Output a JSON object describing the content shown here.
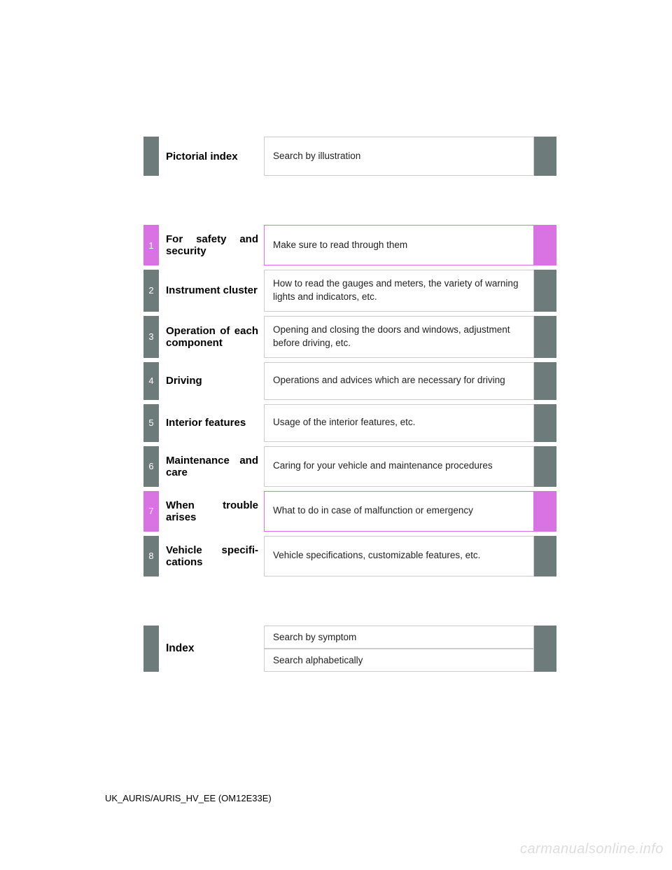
{
  "colors": {
    "tab_gray": "#6e7b7b",
    "tab_pink": "#d973e4",
    "border_gray": "#cccccc",
    "text": "#222222",
    "watermark": "#dddddd"
  },
  "pictorial": {
    "title": "Pictorial index",
    "desc": "Search by illustration"
  },
  "chapters": [
    {
      "num": "1",
      "title": "For safety and security",
      "desc": "Make sure to read through them",
      "highlight": true
    },
    {
      "num": "2",
      "title": "Instrument clus­ter",
      "desc": "How to read the gauges and meters, the variety of warning lights and indicators, etc.",
      "highlight": false
    },
    {
      "num": "3",
      "title": "Operation of each component",
      "desc": "Opening and closing the doors and windows, adjustment before driving, etc.",
      "highlight": false
    },
    {
      "num": "4",
      "title": "Driving",
      "desc": "Operations and advices which are necessary for driving",
      "highlight": false
    },
    {
      "num": "5",
      "title": "Interior features",
      "desc": "Usage of the interior features, etc.",
      "highlight": false
    },
    {
      "num": "6",
      "title": "Maintenance and care",
      "desc": "Caring for your vehicle and maintenance procedures",
      "highlight": false
    },
    {
      "num": "7",
      "title": "When trouble arises",
      "desc": "What to do in case of malfunction or emergency",
      "highlight": true
    },
    {
      "num": "8",
      "title": "Vehicle specifi­cations",
      "desc": "Vehicle specifications, customizable features, etc.",
      "highlight": false
    }
  ],
  "index": {
    "title": "Index",
    "items": [
      "Search by symptom",
      "Search alphabetically"
    ]
  },
  "footer": "UK_AURIS/AURIS_HV_EE (OM12E33E)",
  "watermark": "carmanualsonline.info"
}
